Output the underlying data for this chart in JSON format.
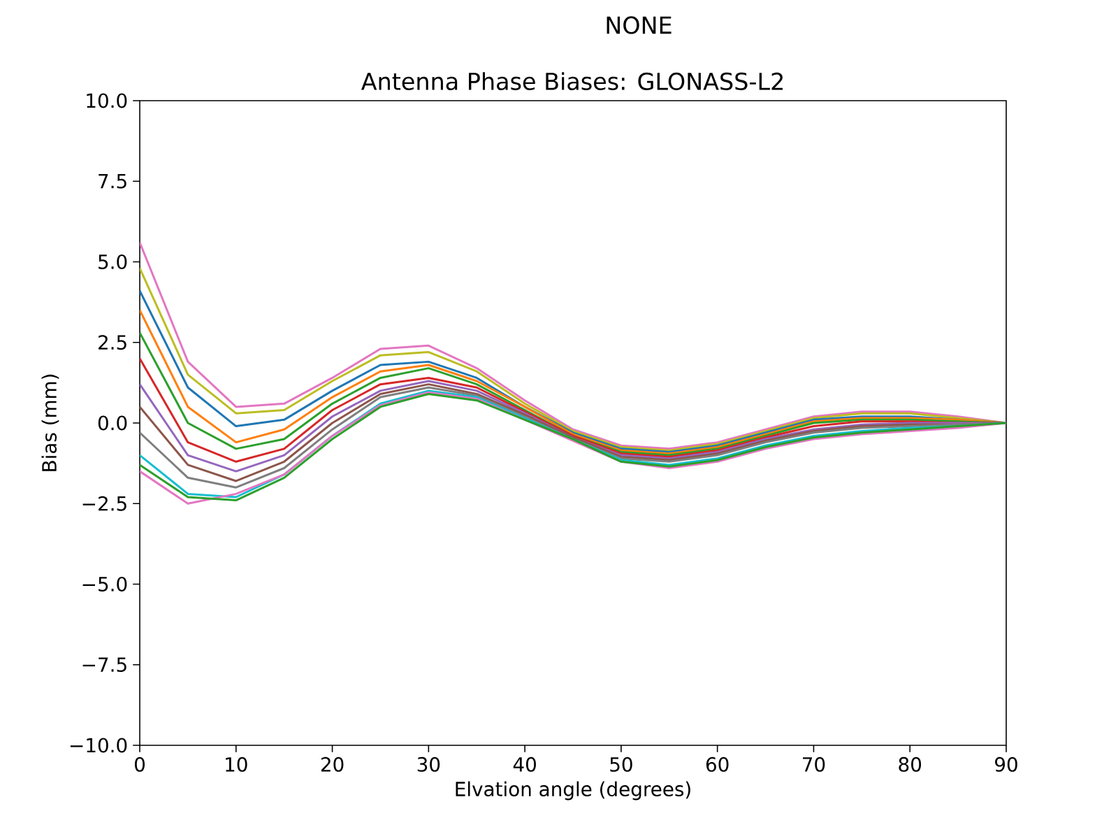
{
  "chart_data": {
    "type": "line",
    "title": "NONE",
    "subtitle": "Antenna Phase Biases: GLONASS-L2",
    "xlabel": "Elvation angle (degrees)",
    "ylabel": "Bias (mm)",
    "x": [
      0,
      5,
      10,
      15,
      20,
      25,
      30,
      35,
      40,
      45,
      50,
      55,
      60,
      65,
      70,
      75,
      80,
      85,
      90
    ],
    "xlim": [
      0,
      90
    ],
    "ylim": [
      -10,
      10
    ],
    "xticks": [
      0,
      10,
      20,
      30,
      40,
      50,
      60,
      70,
      80,
      90
    ],
    "yticks": [
      {
        "value": -10,
        "label": "−10.0"
      },
      {
        "value": -7.5,
        "label": "−7.5"
      },
      {
        "value": -5,
        "label": "−5.0"
      },
      {
        "value": -2.5,
        "label": "−2.5"
      },
      {
        "value": 0,
        "label": "0.0"
      },
      {
        "value": 2.5,
        "label": "2.5"
      },
      {
        "value": 5,
        "label": "5.0"
      },
      {
        "value": 7.5,
        "label": "7.5"
      },
      {
        "value": 10,
        "label": "10.0"
      }
    ],
    "grid": false,
    "series": [
      {
        "color": "#e377c2",
        "values": [
          5.6,
          1.9,
          0.5,
          0.6,
          1.4,
          2.3,
          2.4,
          1.7,
          0.7,
          -0.2,
          -0.7,
          -0.8,
          -0.6,
          -0.2,
          0.2,
          0.35,
          0.35,
          0.2,
          0
        ]
      },
      {
        "color": "#bcbd22",
        "values": [
          4.8,
          1.5,
          0.3,
          0.4,
          1.3,
          2.1,
          2.2,
          1.6,
          0.6,
          -0.25,
          -0.75,
          -0.85,
          -0.65,
          -0.25,
          0.15,
          0.3,
          0.3,
          0.15,
          0
        ]
      },
      {
        "color": "#1f77b4",
        "values": [
          4.1,
          1.1,
          -0.1,
          0.1,
          1.0,
          1.8,
          1.9,
          1.4,
          0.5,
          -0.3,
          -0.8,
          -0.9,
          -0.7,
          -0.3,
          0.1,
          0.2,
          0.2,
          0.1,
          0
        ]
      },
      {
        "color": "#ff7f0e",
        "values": [
          3.5,
          0.5,
          -0.6,
          -0.2,
          0.8,
          1.6,
          1.8,
          1.3,
          0.5,
          -0.35,
          -0.85,
          -0.95,
          -0.75,
          -0.35,
          0.05,
          0.15,
          0.15,
          0.1,
          0
        ]
      },
      {
        "color": "#2ca02c",
        "values": [
          2.8,
          0.0,
          -0.8,
          -0.5,
          0.6,
          1.4,
          1.7,
          1.2,
          0.4,
          -0.4,
          -0.9,
          -1.0,
          -0.8,
          -0.4,
          0.0,
          0.1,
          0.1,
          0.05,
          0
        ]
      },
      {
        "color": "#d62728",
        "values": [
          2.0,
          -0.6,
          -1.2,
          -0.8,
          0.4,
          1.2,
          1.4,
          1.1,
          0.35,
          -0.4,
          -0.95,
          -1.05,
          -0.85,
          -0.45,
          -0.1,
          0.05,
          0.05,
          0.0,
          0
        ]
      },
      {
        "color": "#9467bd",
        "values": [
          1.2,
          -1.0,
          -1.5,
          -1.0,
          0.2,
          1.0,
          1.3,
          1.0,
          0.3,
          -0.45,
          -1.0,
          -1.1,
          -0.9,
          -0.5,
          -0.2,
          -0.05,
          0.0,
          0.0,
          0
        ]
      },
      {
        "color": "#8c564b",
        "values": [
          0.5,
          -1.3,
          -1.8,
          -1.2,
          0.0,
          0.9,
          1.2,
          0.9,
          0.25,
          -0.45,
          -1.05,
          -1.15,
          -0.95,
          -0.55,
          -0.25,
          -0.1,
          -0.05,
          -0.05,
          0
        ]
      },
      {
        "color": "#7f7f7f",
        "values": [
          -0.3,
          -1.7,
          -2.0,
          -1.4,
          -0.2,
          0.8,
          1.1,
          0.85,
          0.2,
          -0.5,
          -1.1,
          -1.2,
          -1.0,
          -0.6,
          -0.3,
          -0.15,
          -0.1,
          -0.05,
          0
        ]
      },
      {
        "color": "#17becf",
        "values": [
          -1.0,
          -2.2,
          -2.3,
          -1.6,
          -0.4,
          0.6,
          1.0,
          0.8,
          0.15,
          -0.5,
          -1.15,
          -1.3,
          -1.1,
          -0.7,
          -0.4,
          -0.25,
          -0.15,
          -0.1,
          0
        ]
      },
      {
        "color": "#e377c2",
        "values": [
          -1.5,
          -2.5,
          -2.2,
          -1.6,
          -0.4,
          0.55,
          0.95,
          0.75,
          0.1,
          -0.55,
          -1.2,
          -1.4,
          -1.2,
          -0.8,
          -0.5,
          -0.35,
          -0.25,
          -0.15,
          0
        ]
      },
      {
        "color": "#2ca02c",
        "values": [
          -1.3,
          -2.3,
          -2.4,
          -1.7,
          -0.5,
          0.5,
          0.9,
          0.7,
          0.1,
          -0.5,
          -1.2,
          -1.35,
          -1.15,
          -0.75,
          -0.45,
          -0.3,
          -0.2,
          -0.1,
          0
        ]
      }
    ]
  }
}
